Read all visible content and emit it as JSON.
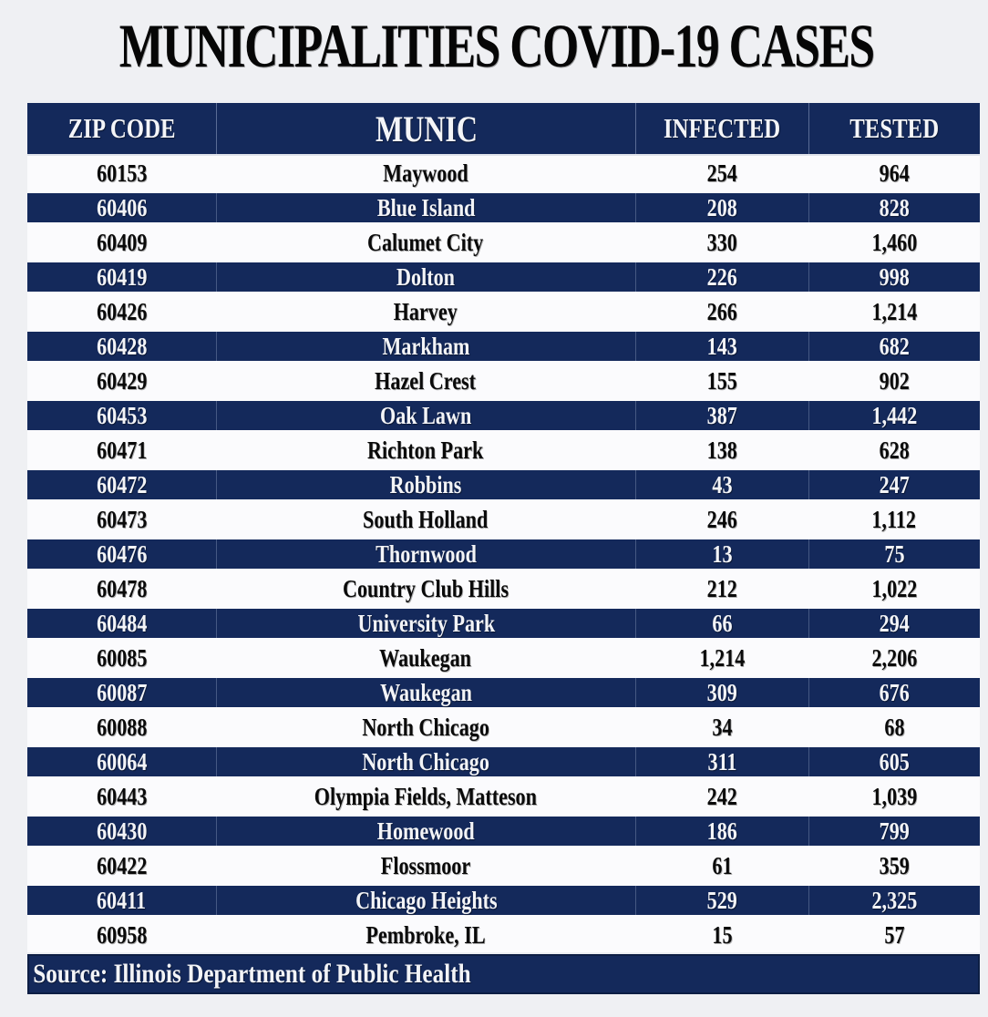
{
  "title": "MUNICIPALITIES COVID-19 CASES",
  "colors": {
    "navy": "#14295b",
    "row_light": "#fbfbfd",
    "page_background": "#eff0f3",
    "text_dark": "#0a0a0a",
    "text_light": "#f3f4f7"
  },
  "chart_data": {
    "type": "table",
    "title": "MUNICIPALITIES COVID-19 CASES",
    "columns": [
      "ZIP CODE",
      "MUNIC",
      "INFECTED",
      "TESTED"
    ],
    "rows": [
      [
        "60153",
        "Maywood",
        "254",
        "964"
      ],
      [
        "60406",
        "Blue Island",
        "208",
        "828"
      ],
      [
        "60409",
        "Calumet City",
        "330",
        "1,460"
      ],
      [
        "60419",
        "Dolton",
        "226",
        "998"
      ],
      [
        "60426",
        "Harvey",
        "266",
        "1,214"
      ],
      [
        "60428",
        "Markham",
        "143",
        "682"
      ],
      [
        "60429",
        "Hazel Crest",
        "155",
        "902"
      ],
      [
        "60453",
        "Oak Lawn",
        "387",
        "1,442"
      ],
      [
        "60471",
        "Richton Park",
        "138",
        "628"
      ],
      [
        "60472",
        "Robbins",
        "43",
        "247"
      ],
      [
        "60473",
        "South Holland",
        "246",
        "1,112"
      ],
      [
        "60476",
        "Thornwood",
        "13",
        "75"
      ],
      [
        "60478",
        "Country Club Hills",
        "212",
        "1,022"
      ],
      [
        "60484",
        "University Park",
        "66",
        "294"
      ],
      [
        "60085",
        "Waukegan",
        "1,214",
        "2,206"
      ],
      [
        "60087",
        "Waukegan",
        "309",
        "676"
      ],
      [
        "60088",
        "North Chicago",
        "34",
        "68"
      ],
      [
        "60064",
        "North Chicago",
        "311",
        "605"
      ],
      [
        "60443",
        "Olympia Fields, Matteson",
        "242",
        "1,039"
      ],
      [
        "60430",
        "Homewood",
        "186",
        "799"
      ],
      [
        "60422",
        "Flossmoor",
        "61",
        "359"
      ],
      [
        "60411",
        "Chicago Heights",
        "529",
        "2,325"
      ],
      [
        "60958",
        "Pembroke, IL",
        "15",
        "57"
      ]
    ],
    "source": "Source: Illinois Department of Public Health"
  }
}
